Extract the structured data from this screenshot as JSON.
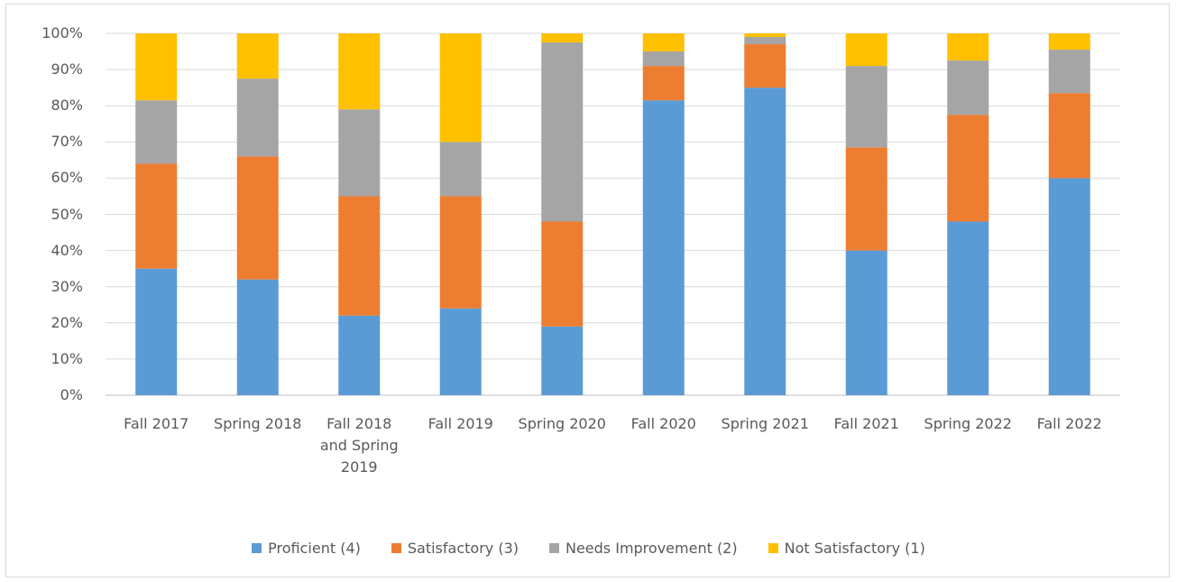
{
  "chart_data": {
    "type": "stacked_bar",
    "categories": [
      "Fall 2017",
      "Spring 2018",
      "Fall 2018 and Spring 2019",
      "Fall 2019",
      "Spring 2020",
      "Fall 2020",
      "Spring 2021",
      "Fall 2021",
      "Spring 2022",
      "Fall 2022"
    ],
    "series": [
      {
        "name": "Proficient (4)",
        "color": "#5b9bd5",
        "values": [
          35,
          32,
          22,
          24,
          19,
          81.5,
          85,
          40,
          48,
          60
        ]
      },
      {
        "name": "Satisfactory (3)",
        "color": "#ed7d31",
        "values": [
          29,
          34,
          33,
          31,
          29,
          9.5,
          12,
          28.5,
          29.5,
          23.5
        ]
      },
      {
        "name": "Needs Improvement (2)",
        "color": "#a5a5a5",
        "values": [
          17.5,
          21.5,
          24,
          15,
          49.5,
          4,
          2,
          22.5,
          15,
          12
        ]
      },
      {
        "name": "Not Satisfactory (1)",
        "color": "#ffc000",
        "values": [
          18.5,
          12.5,
          21,
          30,
          2.5,
          5,
          1,
          9,
          7.5,
          4.5
        ]
      }
    ],
    "ylim": [
      0,
      100
    ],
    "yticks": [
      {
        "value": 0,
        "label": "0%"
      },
      {
        "value": 10,
        "label": "10%"
      },
      {
        "value": 20,
        "label": "20%"
      },
      {
        "value": 30,
        "label": "30%"
      },
      {
        "value": 40,
        "label": "40%"
      },
      {
        "value": 50,
        "label": "50%"
      },
      {
        "value": 60,
        "label": "60%"
      },
      {
        "value": 70,
        "label": "70%"
      },
      {
        "value": 80,
        "label": "80%"
      },
      {
        "value": 90,
        "label": "90%"
      },
      {
        "value": 100,
        "label": "100%"
      }
    ],
    "grid": true,
    "legend": "bottom"
  }
}
